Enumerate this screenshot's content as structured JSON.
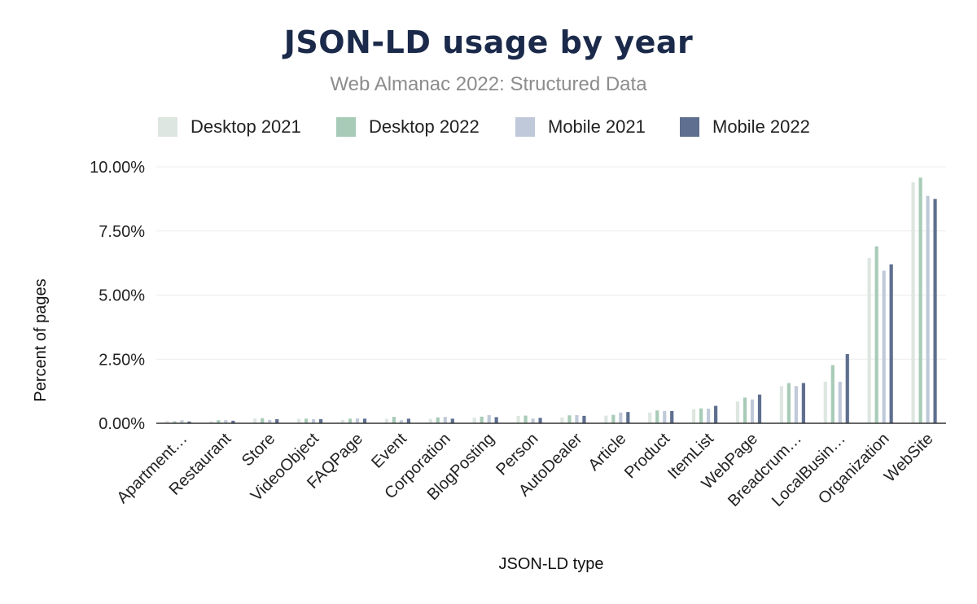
{
  "chart_data": {
    "type": "bar",
    "title": "JSON-LD usage by year",
    "subtitle": "Web Almanac 2022: Structured Data",
    "xlabel": "JSON-LD type",
    "ylabel": "Percent of pages",
    "ylim": [
      0,
      10
    ],
    "y_ticks": [
      "0.00%",
      "2.50%",
      "5.00%",
      "7.50%",
      "10.00%"
    ],
    "y_tick_values": [
      0,
      2.5,
      5,
      7.5,
      10
    ],
    "grid": true,
    "legend_position": "top",
    "categories": [
      "Apartment…",
      "Restaurant",
      "Store",
      "VideoObject",
      "FAQPage",
      "Event",
      "Corporation",
      "BlogPosting",
      "Person",
      "AutoDealer",
      "Article",
      "Product",
      "ItemList",
      "WebPage",
      "Breadcrum…",
      "LocalBusin…",
      "Organization",
      "WebSite"
    ],
    "series": [
      {
        "name": "Desktop 2021",
        "color": "#dde6e0",
        "values": [
          0.1,
          0.08,
          0.18,
          0.17,
          0.13,
          0.17,
          0.17,
          0.22,
          0.29,
          0.23,
          0.3,
          0.42,
          0.55,
          0.85,
          1.45,
          1.62,
          6.45,
          9.4
        ]
      },
      {
        "name": "Desktop 2022",
        "color": "#a8cbb7",
        "values": [
          0.08,
          0.12,
          0.2,
          0.18,
          0.18,
          0.25,
          0.23,
          0.26,
          0.3,
          0.31,
          0.33,
          0.5,
          0.58,
          1.0,
          1.57,
          2.27,
          6.9,
          9.58
        ]
      },
      {
        "name": "Mobile 2021",
        "color": "#c0c9d9",
        "values": [
          0.12,
          0.12,
          0.13,
          0.16,
          0.19,
          0.12,
          0.25,
          0.32,
          0.18,
          0.32,
          0.42,
          0.48,
          0.57,
          0.93,
          1.45,
          1.62,
          5.95,
          8.87
        ]
      },
      {
        "name": "Mobile 2022",
        "color": "#5e6f8f",
        "values": [
          0.07,
          0.1,
          0.16,
          0.16,
          0.18,
          0.18,
          0.18,
          0.24,
          0.21,
          0.29,
          0.44,
          0.48,
          0.68,
          1.12,
          1.57,
          2.7,
          6.2,
          8.75
        ]
      }
    ]
  }
}
